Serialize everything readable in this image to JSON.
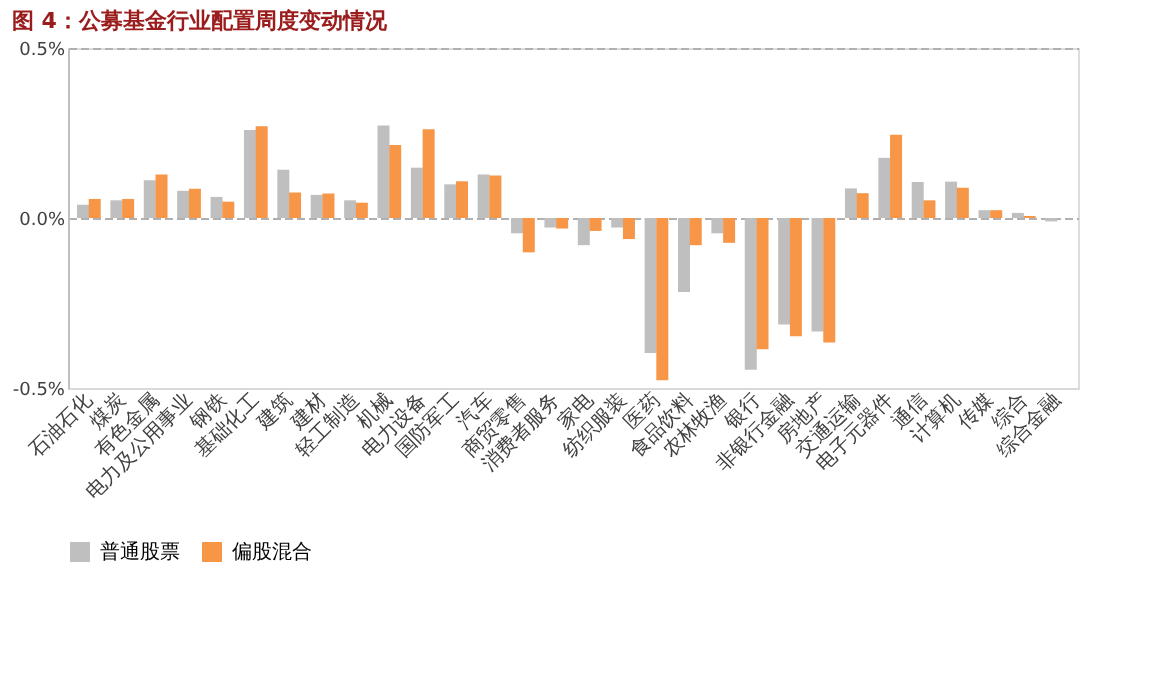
{
  "chart_data": {
    "type": "bar",
    "title": "图 4：公募基金行业配置周度变动情况",
    "categories": [
      "石油石化",
      "煤炭",
      "有色金属",
      "电力及公用事业",
      "钢铁",
      "基础化工",
      "建筑",
      "建材",
      "轻工制造",
      "机械",
      "电力设备",
      "国防军工",
      "汽车",
      "商贸零售",
      "消费者服务",
      "家电",
      "纺织服装",
      "医药",
      "食品饮料",
      "农林牧渔",
      "银行",
      "非银行金融",
      "房地产",
      "交通运输",
      "电子元器件",
      "通信",
      "计算机",
      "传媒",
      "综合",
      "综合金融"
    ],
    "series": [
      {
        "name": "普通股票",
        "color": "#bfbfbf",
        "values": [
          0.039,
          0.052,
          0.111,
          0.08,
          0.062,
          0.259,
          0.142,
          0.068,
          0.052,
          0.272,
          0.148,
          0.099,
          0.128,
          -0.045,
          -0.028,
          -0.08,
          -0.028,
          -0.397,
          -0.218,
          -0.045,
          -0.446,
          -0.313,
          -0.334,
          0.087,
          0.177,
          0.106,
          0.107,
          0.023,
          0.015,
          -0.01
        ]
      },
      {
        "name": "偏股混合",
        "color": "#f79646",
        "values": [
          0.056,
          0.056,
          0.128,
          0.086,
          0.048,
          0.27,
          0.075,
          0.072,
          0.045,
          0.215,
          0.261,
          0.108,
          0.125,
          -0.101,
          -0.031,
          -0.038,
          -0.062,
          -0.477,
          -0.08,
          -0.073,
          -0.386,
          -0.348,
          -0.366,
          0.073,
          0.245,
          0.052,
          0.089,
          0.023,
          0.006,
          0.0
        ]
      }
    ],
    "ylim": [
      -0.5,
      0.5
    ],
    "yticks": [
      {
        "value": -0.5,
        "label": "-0.5%"
      },
      {
        "value": 0,
        "label": "0.0%"
      },
      {
        "value": 0.5,
        "label": "0.5%"
      }
    ],
    "grid": "y",
    "legend": "bottom"
  }
}
